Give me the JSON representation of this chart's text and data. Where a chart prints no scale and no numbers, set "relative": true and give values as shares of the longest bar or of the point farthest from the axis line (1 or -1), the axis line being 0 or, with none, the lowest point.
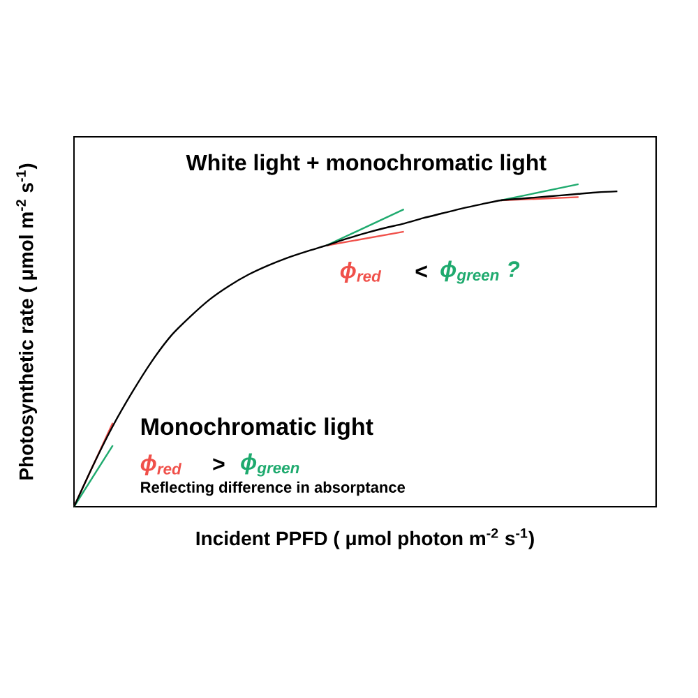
{
  "chart_data": {
    "type": "line",
    "relative": true,
    "xlabel": "Incident PPFD ( μmol photon m$^{-2}$ s$^{-1}$)",
    "ylabel": "Photosynthetic rate ( μmol m$^{-2}$ s$^{-1}$)",
    "tick_labels": false,
    "marker": "none",
    "line_style": "solid",
    "categories": [
      null,
      null,
      null,
      null,
      null,
      null,
      null,
      null,
      null,
      null,
      null,
      null,
      null,
      null,
      null,
      null,
      null,
      null,
      null,
      null,
      null,
      null,
      null,
      null,
      null,
      null,
      null,
      null,
      null
    ],
    "series": [
      {
        "color": "#000000",
        "values": [
          0,
          0.13,
          0.25,
          0.355,
          0.45,
          0.53,
          0.59,
          0.643,
          0.685,
          0.72,
          0.748,
          0.772,
          0.792,
          0.81,
          0.83,
          0.848,
          0.864,
          0.878,
          0.895,
          0.91,
          0.925,
          0.938,
          0.95,
          0.955,
          0.96,
          0.965,
          0.97,
          0.975,
          0.978
        ]
      },
      {
        "color": "#f0504a",
        "values": [
          0,
          null,
          0.26,
          null,
          null,
          null,
          null,
          null,
          null,
          null,
          null,
          null,
          null,
          null,
          null,
          null,
          null,
          null,
          null,
          null,
          null,
          null,
          null,
          null,
          null,
          null,
          null,
          null,
          null
        ]
      },
      {
        "color": "#1eaa6e",
        "values": [
          0,
          null,
          0.19,
          null,
          null,
          null,
          null,
          null,
          null,
          null,
          null,
          null,
          null,
          null,
          null,
          null,
          null,
          null,
          null,
          null,
          null,
          null,
          null,
          null,
          null,
          null,
          null,
          null,
          null
        ]
      },
      {
        "color": "#f0504a",
        "values": [
          null,
          null,
          null,
          null,
          null,
          null,
          null,
          null,
          null,
          null,
          null,
          null,
          null,
          0.81,
          null,
          null,
          null,
          0.853,
          null,
          null,
          null,
          null,
          null,
          null,
          null,
          null,
          null,
          null,
          null
        ]
      },
      {
        "color": "#1eaa6e",
        "values": [
          null,
          null,
          null,
          null,
          null,
          null,
          null,
          null,
          null,
          null,
          null,
          null,
          null,
          0.81,
          null,
          null,
          null,
          0.922,
          null,
          null,
          null,
          null,
          null,
          null,
          null,
          null,
          null,
          null,
          null
        ]
      },
      {
        "color": "#f0504a",
        "values": [
          null,
          null,
          null,
          null,
          null,
          null,
          null,
          null,
          null,
          null,
          null,
          null,
          null,
          null,
          null,
          null,
          null,
          null,
          null,
          null,
          null,
          null,
          0.95,
          null,
          null,
          null,
          0.96,
          null,
          null
        ]
      },
      {
        "color": "#1eaa6e",
        "values": [
          null,
          null,
          null,
          null,
          null,
          null,
          null,
          null,
          null,
          null,
          null,
          null,
          null,
          null,
          null,
          null,
          null,
          null,
          null,
          null,
          null,
          null,
          0.95,
          null,
          null,
          null,
          1.0,
          null,
          null
        ]
      }
    ],
    "annotations": [
      "White light + monochromatic light",
      "ϕ$_{red}$",
      "<",
      "ϕ$_{green}$ ?",
      "Monochromatic light",
      "ϕ$_{red}$",
      ">",
      "ϕ$_{green}$",
      "Reflecting difference in absorptance"
    ]
  }
}
